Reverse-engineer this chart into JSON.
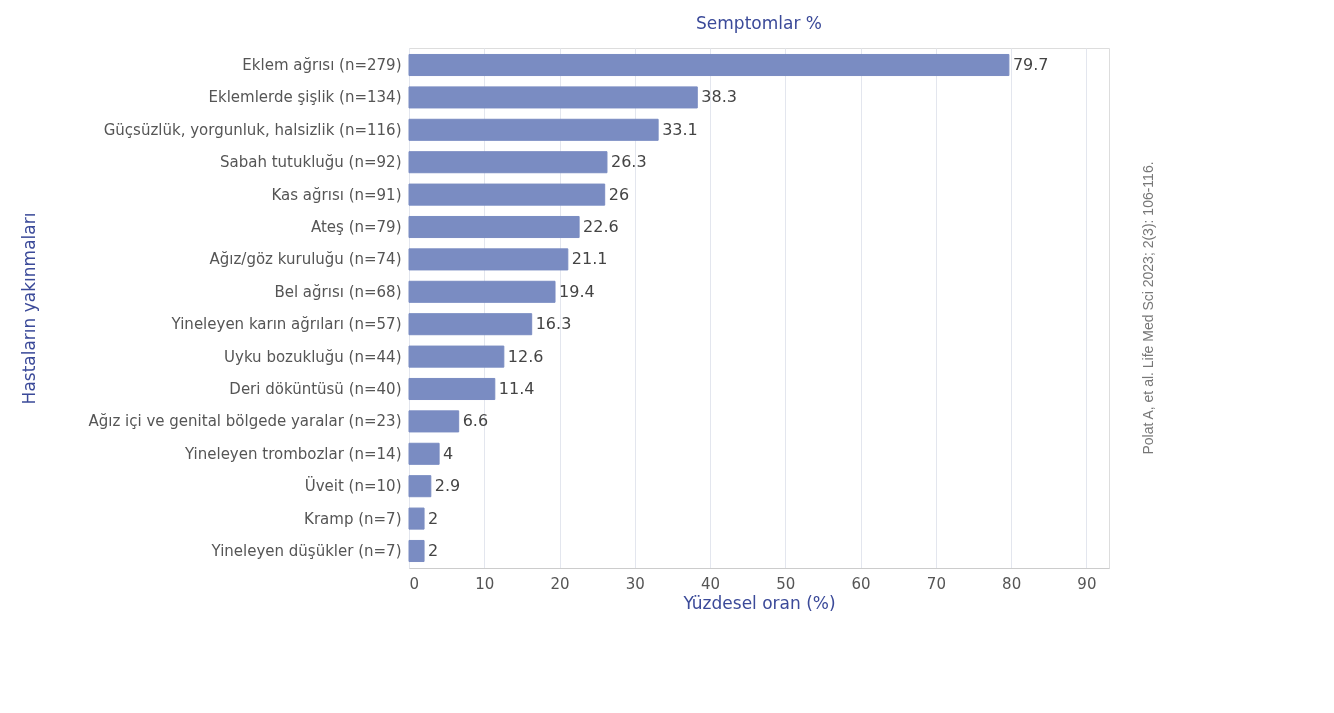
{
  "chart_data": {
    "type": "bar",
    "orientation": "horizontal",
    "title": "Semptomlar %",
    "xlabel": "Yüzdesel oran (%)",
    "ylabel": "Hastaların yakınmaları",
    "categories": [
      "Eklem ağrısı (n=279)",
      "Eklemlerde şişlik (n=134)",
      "Güçsüzlük, yorgunluk, halsizlik (n=116)",
      "Sabah tutukluğu (n=92)",
      "Kas ağrısı (n=91)",
      "Ateş (n=79)",
      "Ağız/göz kuruluğu (n=74)",
      "Bel ağrısı (n=68)",
      "Yineleyen karın ağrıları (n=57)",
      "Uyku bozukluğu (n=44)",
      "Deri döküntüsü (n=40)",
      "Ağız içi ve genital bölgede yaralar (n=23)",
      "Yineleyen trombozlar (n=14)",
      "Üveit (n=10)",
      "Kramp (n=7)",
      "Yineleyen düşükler (n=7)"
    ],
    "values": [
      79.7,
      38.3,
      33.1,
      26.3,
      26,
      22.6,
      21.1,
      19.4,
      16.3,
      12.6,
      11.4,
      6.6,
      4,
      2.9,
      2,
      2
    ],
    "color": "#7a8cc2",
    "xlim": [
      0,
      93
    ],
    "xticks": [
      0,
      10,
      20,
      30,
      40,
      50,
      60,
      70,
      80,
      90
    ],
    "grid": "x",
    "data_labels": true,
    "annotations": [
      "Polat A, et al. Life Med Sci 2023; 2(3): 106-116."
    ]
  }
}
